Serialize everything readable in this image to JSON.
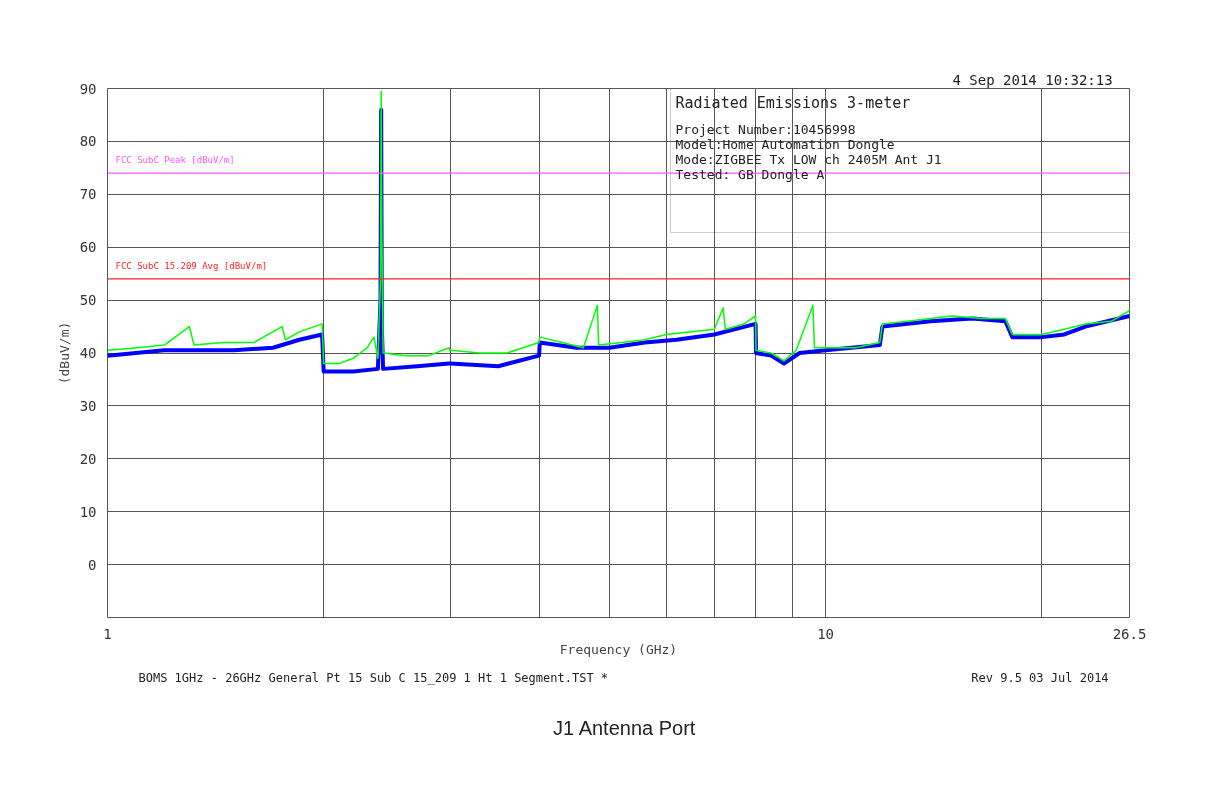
{
  "chart_data": {
    "type": "line",
    "xlabel": "Frequency (GHz)",
    "ylabel": "(dBuV/m)",
    "log": "x",
    "xlim": [
      1,
      26.5
    ],
    "xticks": [
      1,
      {
        "value": 2,
        "label": null
      },
      {
        "value": 3,
        "label": null
      },
      {
        "value": 4,
        "label": null
      },
      {
        "value": 5,
        "label": null
      },
      {
        "value": 6,
        "label": null
      },
      {
        "value": 7,
        "label": null
      },
      {
        "value": 8,
        "label": null
      },
      {
        "value": 9,
        "label": null
      },
      10,
      {
        "value": 20,
        "label": null
      },
      26.5
    ],
    "ylim": [
      -10,
      90
    ],
    "yticks": [
      0,
      10,
      20,
      30,
      40,
      50,
      60,
      70,
      80,
      90
    ],
    "grid": true,
    "marker": "none",
    "line_style": "solid",
    "series": [
      {
        "color": "#0000ff",
        "x": [
          1.0,
          1.2,
          1.5,
          1.7,
          1.85,
          1.99,
          2.0,
          2.2,
          2.38,
          2.4,
          2.405,
          2.41,
          2.42,
          2.7,
          2.99,
          3.0,
          3.5,
          3.99,
          4.0,
          4.5,
          5.0,
          5.6,
          6.2,
          7.0,
          7.99,
          8.0,
          8.4,
          8.75,
          9.2,
          10.0,
          11.9,
          12.0,
          14.0,
          16.0,
          17.8,
          18.2,
          20.0,
          21.5,
          23.0,
          26.5
        ],
        "values": [
          39.5,
          40.5,
          40.5,
          41,
          42.5,
          43.5,
          36.5,
          36.5,
          37,
          50,
          86,
          45,
          37,
          37.5,
          38,
          38,
          37.5,
          39.5,
          42,
          41,
          41,
          42,
          42.5,
          43.5,
          45.5,
          40,
          39.5,
          38,
          40,
          40.5,
          41.5,
          45,
          46,
          46.5,
          46,
          43,
          43,
          43.5,
          45,
          47
        ]
      },
      {
        "color": "#00ff00",
        "x": [
          1.0,
          1.1,
          1.2,
          1.3,
          1.32,
          1.45,
          1.6,
          1.75,
          1.77,
          1.85,
          1.99,
          2.0,
          2.1,
          2.2,
          2.3,
          2.35,
          2.38,
          2.4,
          2.405,
          2.41,
          2.42,
          2.6,
          2.8,
          2.99,
          3.0,
          3.3,
          3.6,
          3.99,
          4.0,
          4.3,
          4.6,
          4.81,
          4.83,
          5.2,
          5.6,
          6.0,
          6.5,
          7.0,
          7.2,
          7.25,
          7.7,
          7.99,
          8.0,
          8.4,
          8.75,
          9.1,
          9.6,
          9.65,
          10.0,
          11.0,
          11.9,
          12.0,
          13.0,
          14.0,
          15.0,
          16.5,
          17.8,
          18.2,
          20.0,
          21.5,
          23.0,
          25.0,
          26.5
        ],
        "values": [
          40.5,
          41,
          41.5,
          45,
          41.5,
          42,
          42,
          45,
          42.5,
          44,
          45.5,
          38,
          38,
          39,
          41,
          43,
          39,
          54,
          89.5,
          63,
          40,
          39.5,
          39.5,
          41,
          40.5,
          40,
          40,
          42,
          43,
          42,
          41,
          49,
          41.5,
          42,
          42.5,
          43.5,
          44,
          44.5,
          48.5,
          44.5,
          45.5,
          47,
          40.5,
          40,
          38.5,
          40.5,
          49,
          41,
          41,
          41,
          42,
          45.5,
          46,
          46.5,
          47,
          46.5,
          46.5,
          43.5,
          43.5,
          44.5,
          45.5,
          46,
          48
        ]
      }
    ],
    "ref_lines": [
      {
        "axis": "y",
        "value": 74,
        "label": "FCC SubC Peak [dBuV/m]",
        "color": "#ff55ff",
        "line_style": "solid"
      },
      {
        "axis": "y",
        "value": 54,
        "label": "FCC SubC 15.209 Avg [dBuV/m]",
        "color": "#ff2020",
        "line_style": "solid"
      }
    ],
    "annotations": [
      "4 Sep 2014   10:32:13",
      "Radiated Emissions 3-meter",
      "Project Number:10456998",
      "Model:Home Automation Dongle",
      "Mode:ZIGBEE Tx LOW ch 2405M Ant J1",
      "Tested: GB    Dongle A",
      "BOMS 1GHz - 26GHz General Pt 15 Sub C 15_209 1 Ht 1 Segment.TST *",
      "Rev 9.5 03 Jul 2014",
      "J1 Antenna Port"
    ]
  }
}
